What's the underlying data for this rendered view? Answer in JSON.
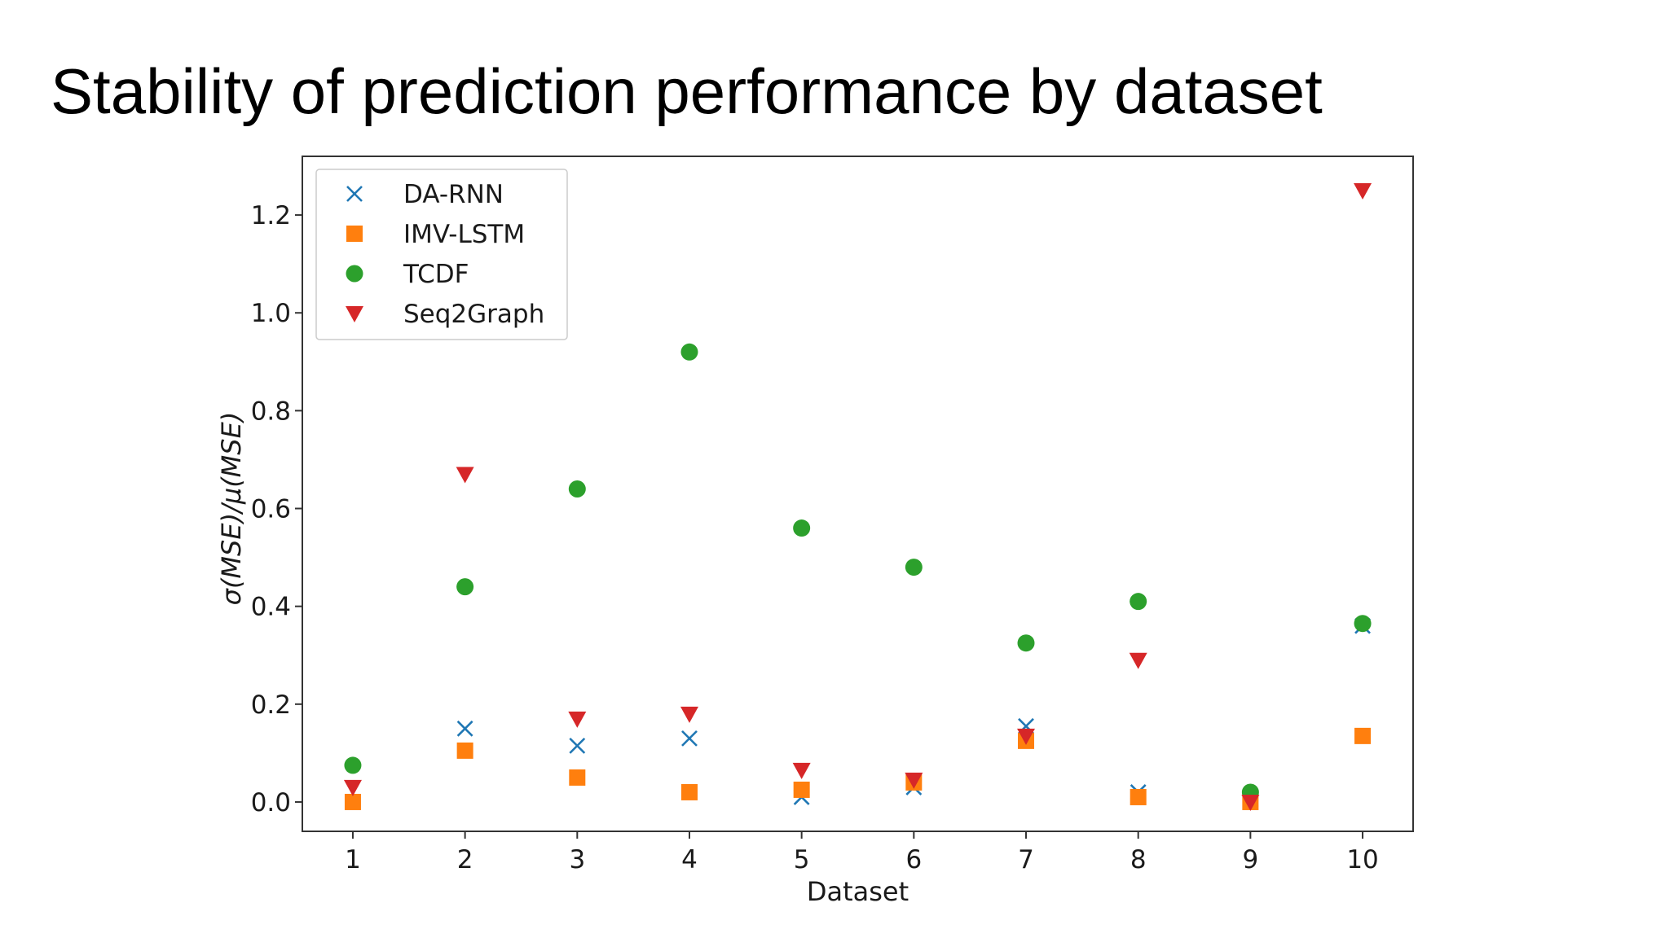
{
  "page": {
    "title": "Stability of prediction performance by dataset"
  },
  "chart_data": {
    "type": "scatter",
    "title": "",
    "xlabel": "Dataset",
    "ylabel": "σ(MSE)/μ(MSE)",
    "xlim": [
      0.55,
      10.45
    ],
    "ylim": [
      -0.06,
      1.32
    ],
    "x_ticks": [
      1,
      2,
      3,
      4,
      5,
      6,
      7,
      8,
      9,
      10
    ],
    "x_tick_labels": [
      "1",
      "2",
      "3",
      "4",
      "5",
      "6",
      "7",
      "8",
      "9",
      "10"
    ],
    "y_ticks": [
      0.0,
      0.2,
      0.4,
      0.6,
      0.8,
      1.0,
      1.2
    ],
    "y_tick_labels": [
      "0.0",
      "0.2",
      "0.4",
      "0.6",
      "0.8",
      "1.0",
      "1.2"
    ],
    "grid": false,
    "legend_position": "top-left",
    "x": [
      1,
      2,
      3,
      4,
      5,
      6,
      7,
      8,
      9,
      10
    ],
    "series": [
      {
        "name": "DA-RNN",
        "marker": "x",
        "color": "#1f77b4",
        "values": [
          0.0,
          0.15,
          0.115,
          0.13,
          0.01,
          0.03,
          0.155,
          0.02,
          0.005,
          0.36
        ]
      },
      {
        "name": "IMV-LSTM",
        "marker": "square",
        "color": "#ff7f0e",
        "values": [
          0.0,
          0.105,
          0.05,
          0.02,
          0.025,
          0.04,
          0.125,
          0.01,
          0.0,
          0.135
        ]
      },
      {
        "name": "TCDF",
        "marker": "circle",
        "color": "#2ca02c",
        "values": [
          0.075,
          0.44,
          0.64,
          0.92,
          0.56,
          0.48,
          0.325,
          0.41,
          0.02,
          0.365
        ]
      },
      {
        "name": "Seq2Graph",
        "marker": "triangle-down",
        "color": "#d62728",
        "values": [
          0.03,
          0.67,
          0.17,
          0.18,
          0.065,
          0.045,
          0.135,
          0.29,
          0.0,
          1.25
        ]
      }
    ]
  }
}
